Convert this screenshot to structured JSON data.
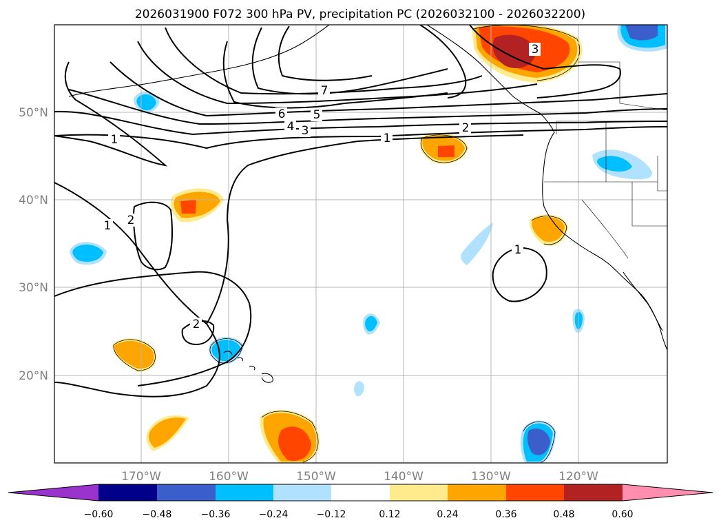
{
  "title": "2026031900 F072 300 hPa PV, precipitation PC (2026032100 - 2026032200)",
  "axes": {
    "lat_labels": [
      "50°N",
      "40°N",
      "30°N",
      "20°N"
    ],
    "lon_labels": [
      "170°W",
      "160°W",
      "150°W",
      "140°W",
      "130°W",
      "120°W"
    ]
  },
  "colorbar": {
    "ticks": [
      "−0.60",
      "−0.48",
      "−0.36",
      "−0.24",
      "−0.12",
      "0.12",
      "0.24",
      "0.36",
      "0.48",
      "0.60"
    ],
    "colors": [
      "#9933cc",
      "#00008b",
      "#3a5fcd",
      "#00bfff",
      "#b0e2ff",
      "#ffffff",
      "#ffea8c",
      "#ffa500",
      "#ff4500",
      "#b22222",
      "#ff8eb0"
    ]
  },
  "pv_labels": [
    "1",
    "1",
    "1",
    "1",
    "2",
    "2",
    "2",
    "3",
    "3",
    "4",
    "5",
    "6",
    "7"
  ]
}
